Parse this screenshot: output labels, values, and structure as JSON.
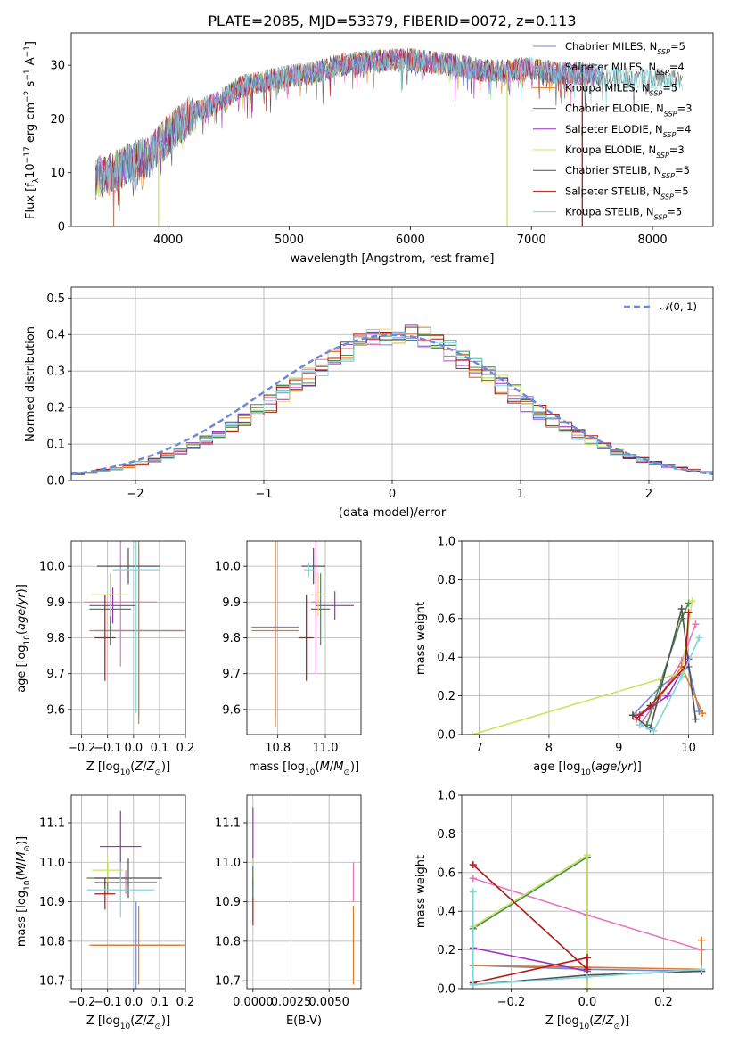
{
  "figure": {
    "title": "PLATE=2085, MJD=53379, FIBERID=0072, z=0.113"
  },
  "colors": {
    "Chabrier MILES": "#6c8ad6",
    "Salpeter MILES": "#e377c2",
    "Kroupa MILES": "#e07b28",
    "Chabrier ELODIE": "#4b8a4b",
    "Salpeter ELODIE": "#9b30c0",
    "Kroupa ELODIE": "#c8e660",
    "Chabrier STELIB": "#505050",
    "Salpeter STELIB": "#b01818",
    "Kroupa STELIB": "#7fd8dc"
  },
  "legend_spectrum": {
    "entries": [
      {
        "pre": "Chabrier MILES, N",
        "sub": "SSP",
        "post": "=5",
        "key": "Chabrier MILES"
      },
      {
        "pre": "Salpeter MILES, N",
        "sub": "SSP",
        "post": "=4",
        "key": "Salpeter MILES"
      },
      {
        "pre": "Kroupa MILES, N",
        "sub": "SSP",
        "post": "=5",
        "key": "Kroupa MILES"
      },
      {
        "pre": "Chabrier ELODIE, N",
        "sub": "SSP",
        "post": "=3",
        "key": "Chabrier ELODIE"
      },
      {
        "pre": "Salpeter ELODIE, N",
        "sub": "SSP",
        "post": "=4",
        "key": "Salpeter ELODIE"
      },
      {
        "pre": "Kroupa ELODIE, N",
        "sub": "SSP",
        "post": "=3",
        "key": "Kroupa ELODIE"
      },
      {
        "pre": "Chabrier STELIB, N",
        "sub": "SSP",
        "post": "=5",
        "key": "Chabrier STELIB"
      },
      {
        "pre": "Salpeter STELIB, N",
        "sub": "SSP",
        "post": "=5",
        "key": "Salpeter STELIB"
      },
      {
        "pre": "Kroupa STELIB, N",
        "sub": "SSP",
        "post": "=5",
        "key": "Kroupa STELIB"
      }
    ]
  },
  "chart_data": [
    {
      "id": "spectrum",
      "type": "line",
      "xlabel": "wavelength [Angstrom, rest frame]",
      "ylabel": "Flux [fλ10⁻¹⁷ erg cm⁻² s⁻¹ A⁻¹]",
      "xlim": [
        3200,
        8500
      ],
      "ylim": [
        0,
        36
      ],
      "xticks": [
        4000,
        5000,
        6000,
        7000,
        8000
      ],
      "yticks": [
        0,
        10,
        20,
        30
      ],
      "continuum": {
        "x": [
          3400,
          3550,
          3700,
          3850,
          4000,
          4200,
          4400,
          4600,
          4800,
          5000,
          5200,
          5400,
          5600,
          5800,
          6000,
          6200,
          6400,
          6600,
          6800,
          7000,
          7200,
          7400,
          7600,
          7800,
          8000,
          8250
        ],
        "y": [
          9,
          10,
          12,
          13,
          17,
          21,
          23,
          26,
          27,
          28,
          28.5,
          30,
          30.5,
          31,
          31,
          30.5,
          30,
          29,
          29,
          29.5,
          28.5,
          28.5,
          28,
          27.5,
          27.5,
          27
        ]
      },
      "dips": [
        {
          "x": 3550,
          "key": "Kroupa MILES"
        },
        {
          "x": 3920,
          "key": "Kroupa ELODIE"
        },
        {
          "x": 6800,
          "key": "Kroupa ELODIE"
        },
        {
          "x": 7420,
          "key": "Salpeter STELIB"
        }
      ]
    },
    {
      "id": "residual-histogram",
      "type": "bar",
      "xlabel": "(data-model)/error",
      "ylabel": "Normed distribution",
      "xlim": [
        -2.5,
        2.5
      ],
      "ylim": [
        0,
        0.53
      ],
      "xticks": [
        -2,
        -1,
        0,
        1,
        2
      ],
      "yticks": [
        0.0,
        0.1,
        0.2,
        0.3,
        0.4,
        0.5
      ],
      "bin_edges_start": -2.5,
      "bin_width": 0.1,
      "base_values": [
        0.018,
        0.022,
        0.028,
        0.033,
        0.04,
        0.047,
        0.057,
        0.068,
        0.08,
        0.095,
        0.11,
        0.127,
        0.145,
        0.165,
        0.187,
        0.21,
        0.235,
        0.26,
        0.285,
        0.31,
        0.333,
        0.355,
        0.373,
        0.39,
        0.4,
        0.405,
        0.4,
        0.39,
        0.375,
        0.355,
        0.333,
        0.31,
        0.285,
        0.26,
        0.235,
        0.21,
        0.187,
        0.165,
        0.145,
        0.127,
        0.11,
        0.095,
        0.08,
        0.068,
        0.057,
        0.047,
        0.04,
        0.033,
        0.028,
        0.022
      ],
      "normal_curve": {
        "label": "N(0,1)",
        "color": "#6c8ad6"
      }
    },
    {
      "id": "age-vs-Z",
      "type": "scatter",
      "xlabel": "Z [log10(Z/Z⊙)]",
      "ylabel": "age  [log10(age/yr)]",
      "xlim": [
        -0.24,
        0.2
      ],
      "ylim": [
        9.53,
        10.07
      ],
      "xticks": [
        -0.2,
        -0.1,
        0.0,
        0.1,
        0.2
      ],
      "yticks": [
        9.6,
        9.7,
        9.8,
        9.9,
        10.0
      ],
      "points": [
        {
          "key": "Chabrier MILES",
          "x": 0.02,
          "y": 9.82,
          "xerr": 0.17,
          "yerr": 0.24
        },
        {
          "key": "Salpeter MILES",
          "x": -0.05,
          "y": 9.9,
          "xerr": 0.14,
          "yerr": 0.18
        },
        {
          "key": "Kroupa MILES",
          "x": 0.02,
          "y": 9.82,
          "xerr": 0.19,
          "yerr": 0.26
        },
        {
          "key": "Chabrier ELODIE",
          "x": -0.09,
          "y": 9.88,
          "xerr": 0.08,
          "yerr": 0.1
        },
        {
          "key": "Salpeter ELODIE",
          "x": -0.08,
          "y": 9.89,
          "xerr": 0.09,
          "yerr": 0.05
        },
        {
          "key": "Kroupa ELODIE",
          "x": -0.09,
          "y": 9.92,
          "xerr": 0.07,
          "yerr": 0.06
        },
        {
          "key": "Chabrier STELIB",
          "x": -0.02,
          "y": 10.0,
          "xerr": 0.12,
          "yerr": 0.05
        },
        {
          "key": "Salpeter STELIB",
          "x": -0.11,
          "y": 9.8,
          "xerr": 0.04,
          "yerr": 0.12
        },
        {
          "key": "Kroupa STELIB",
          "x": 0.01,
          "y": 9.99,
          "xerr": 0.09,
          "yerr": 0.4
        }
      ]
    },
    {
      "id": "age-vs-mass",
      "type": "scatter",
      "xlabel": "mass [log10(M/M⊙)]",
      "ylabel": "",
      "xlim": [
        10.67,
        11.15
      ],
      "ylim": [
        9.53,
        10.07
      ],
      "xticks": [
        10.8,
        11.0
      ],
      "yticks": [
        9.6,
        9.7,
        9.8,
        9.9,
        10.0
      ],
      "points": [
        {
          "key": "Chabrier MILES",
          "x": 10.79,
          "y": 9.83,
          "xerr": 0.1,
          "yerr": 0.25
        },
        {
          "key": "Salpeter MILES",
          "x": 10.96,
          "y": 9.9,
          "xerr": 0.02,
          "yerr": 0.2
        },
        {
          "key": "Kroupa MILES",
          "x": 10.79,
          "y": 9.82,
          "xerr": 0.1,
          "yerr": 0.27
        },
        {
          "key": "Chabrier ELODIE",
          "x": 10.98,
          "y": 9.88,
          "xerr": 0.04,
          "yerr": 0.1
        },
        {
          "key": "Salpeter ELODIE",
          "x": 11.04,
          "y": 9.89,
          "xerr": 0.08,
          "yerr": 0.04
        },
        {
          "key": "Kroupa ELODIE",
          "x": 10.97,
          "y": 9.92,
          "xerr": 0.03,
          "yerr": 0.06
        },
        {
          "key": "Chabrier STELIB",
          "x": 10.95,
          "y": 10.0,
          "xerr": 0.05,
          "yerr": 0.05
        },
        {
          "key": "Salpeter STELIB",
          "x": 10.92,
          "y": 9.8,
          "xerr": 0.03,
          "yerr": 0.12
        },
        {
          "key": "Kroupa STELIB",
          "x": 10.93,
          "y": 9.99,
          "xerr": 0.02,
          "yerr": 0.02
        }
      ]
    },
    {
      "id": "weight-vs-age",
      "type": "line",
      "xlabel": "age  [log10(age/yr)]",
      "ylabel": "mass weight",
      "xlim": [
        6.75,
        10.35
      ],
      "ylim": [
        0,
        1.0
      ],
      "xticks": [
        7,
        8,
        9,
        10
      ],
      "yticks": [
        0.0,
        0.2,
        0.4,
        0.6,
        0.8,
        1.0
      ],
      "series": [
        {
          "key": "Chabrier MILES",
          "x": [
            9.2,
            9.6,
            10.0,
            10.15
          ],
          "y": [
            0.1,
            0.25,
            0.35,
            0.12
          ]
        },
        {
          "key": "Salpeter MILES",
          "x": [
            9.3,
            9.6,
            9.9,
            10.1
          ],
          "y": [
            0.05,
            0.2,
            0.38,
            0.57
          ]
        },
        {
          "key": "Kroupa MILES",
          "x": [
            9.25,
            9.5,
            9.9,
            10.2
          ],
          "y": [
            0.1,
            0.15,
            0.35,
            0.11
          ]
        },
        {
          "key": "Chabrier ELODIE",
          "x": [
            9.4,
            9.9,
            10.0
          ],
          "y": [
            0.05,
            0.6,
            0.68
          ]
        },
        {
          "key": "Salpeter ELODIE",
          "x": [
            9.3,
            9.7,
            10.0
          ],
          "y": [
            0.1,
            0.2,
            0.39
          ]
        },
        {
          "key": "Kroupa ELODIE",
          "x": [
            6.9,
            9.9,
            10.05
          ],
          "y": [
            0.0,
            0.32,
            0.69
          ]
        },
        {
          "key": "Chabrier STELIB",
          "x": [
            9.2,
            9.45,
            9.9,
            10.1
          ],
          "y": [
            0.1,
            0.03,
            0.65,
            0.08
          ]
        },
        {
          "key": "Salpeter STELIB",
          "x": [
            9.25,
            9.45,
            9.95,
            10.0
          ],
          "y": [
            0.08,
            0.15,
            0.35,
            0.63
          ]
        },
        {
          "key": "Kroupa STELIB",
          "x": [
            9.3,
            9.5,
            9.9,
            10.15
          ],
          "y": [
            0.05,
            0.02,
            0.3,
            0.5
          ]
        }
      ]
    },
    {
      "id": "mass-vs-Z",
      "type": "scatter",
      "xlabel": "Z [log10(Z/Z⊙)]",
      "ylabel": "mass [log10(M/M⊙)]",
      "xlim": [
        -0.24,
        0.2
      ],
      "ylim": [
        10.68,
        11.17
      ],
      "xticks": [
        -0.2,
        -0.1,
        0.0,
        0.1,
        0.2
      ],
      "yticks": [
        10.7,
        10.8,
        10.9,
        11.0,
        11.1
      ],
      "points": [
        {
          "key": "Chabrier MILES",
          "x": 0.01,
          "y": 10.79,
          "xerr": 0.17,
          "yerr": 0.11
        },
        {
          "key": "Salpeter MILES",
          "x": -0.03,
          "y": 10.95,
          "xerr": 0.12,
          "yerr": 0.03
        },
        {
          "key": "Kroupa MILES",
          "x": 0.02,
          "y": 10.79,
          "xerr": 0.19,
          "yerr": 0.1
        },
        {
          "key": "Chabrier ELODIE",
          "x": -0.1,
          "y": 10.96,
          "xerr": 0.08,
          "yerr": 0.04
        },
        {
          "key": "Salpeter ELODIE",
          "x": -0.05,
          "y": 11.04,
          "xerr": 0.08,
          "yerr": 0.09
        },
        {
          "key": "Kroupa ELODIE",
          "x": -0.1,
          "y": 10.98,
          "xerr": 0.06,
          "yerr": 0.03
        },
        {
          "key": "Chabrier STELIB",
          "x": -0.02,
          "y": 10.96,
          "xerr": 0.13,
          "yerr": 0.05
        },
        {
          "key": "Salpeter STELIB",
          "x": -0.11,
          "y": 10.92,
          "xerr": 0.04,
          "yerr": 0.04
        },
        {
          "key": "Kroupa STELIB",
          "x": -0.05,
          "y": 10.93,
          "xerr": 0.13,
          "yerr": 0.07
        }
      ]
    },
    {
      "id": "mass-vs-EBV",
      "type": "scatter",
      "xlabel": "E(B-V)",
      "ylabel": "",
      "xlim": [
        -0.0004,
        0.0071
      ],
      "ylim": [
        10.68,
        11.17
      ],
      "xticks": [
        0.0,
        0.0025,
        0.005
      ],
      "xticklabels": [
        "0.0000",
        "0.0025",
        "0.0050"
      ],
      "yticks": [
        10.7,
        10.8,
        10.9,
        11.0,
        11.1
      ],
      "points": [
        {
          "key": "Kroupa MILES",
          "x": 0.0066,
          "y": 10.79,
          "xerr": 0,
          "yerr": 0.1
        },
        {
          "key": "Salpeter MILES",
          "x": 0.0066,
          "y": 10.95,
          "xerr": 0,
          "yerr": 0.05
        },
        {
          "key": "Salpeter ELODIE",
          "x": 0.0,
          "y": 11.04,
          "xerr": 0,
          "yerr": 0.1
        },
        {
          "key": "Kroupa ELODIE",
          "x": 0.0,
          "y": 10.98,
          "xerr": 0,
          "yerr": 0.03
        },
        {
          "key": "Salpeter STELIB",
          "x": 0.0,
          "y": 10.9,
          "xerr": 0,
          "yerr": 0.06
        },
        {
          "key": "Chabrier ELODIE",
          "x": 0.0,
          "y": 10.95,
          "xerr": 0,
          "yerr": 0.04
        }
      ]
    },
    {
      "id": "weight-vs-Z",
      "type": "line",
      "xlabel": "Z [log10(Z/Z⊙)]",
      "ylabel": "mass weight",
      "xlim": [
        -0.33,
        0.33
      ],
      "ylim": [
        0,
        1.0
      ],
      "xticks": [
        -0.2,
        0.0,
        0.2
      ],
      "yticks": [
        0.0,
        0.2,
        0.4,
        0.6,
        0.8,
        1.0
      ],
      "series": [
        {
          "key": "Chabrier MILES",
          "x": [
            -0.3,
            0.0,
            0.3
          ],
          "y": [
            0.12,
            0.1,
            0.09
          ]
        },
        {
          "key": "Salpeter MILES",
          "x": [
            -0.3,
            0.0,
            0.3
          ],
          "y": [
            0.57,
            0.38,
            0.2
          ]
        },
        {
          "key": "Kroupa MILES",
          "x": [
            -0.3,
            0.0,
            0.3,
            0.3
          ],
          "y": [
            0.12,
            0.11,
            0.1,
            0.25
          ]
        },
        {
          "key": "Chabrier ELODIE",
          "x": [
            -0.3,
            0.0,
            0.0
          ],
          "y": [
            0.31,
            0.68,
            0.0
          ]
        },
        {
          "key": "Salpeter ELODIE",
          "x": [
            -0.3,
            0.0
          ],
          "y": [
            0.21,
            0.09
          ]
        },
        {
          "key": "Kroupa ELODIE",
          "x": [
            -0.3,
            0.0,
            0.0
          ],
          "y": [
            0.32,
            0.69,
            0.0
          ]
        },
        {
          "key": "Chabrier STELIB",
          "x": [
            -0.3,
            0.0,
            0.3
          ],
          "y": [
            0.02,
            0.07,
            0.09
          ]
        },
        {
          "key": "Salpeter STELIB",
          "x": [
            -0.3,
            0.0,
            0.0,
            -0.3
          ],
          "y": [
            0.03,
            0.16,
            0.1,
            0.64
          ]
        },
        {
          "key": "Kroupa STELIB",
          "x": [
            -0.3,
            -0.3,
            0.0,
            0.3
          ],
          "y": [
            0.5,
            0.02,
            0.06,
            0.1
          ]
        }
      ]
    }
  ]
}
